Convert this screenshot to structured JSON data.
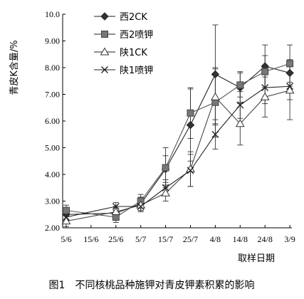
{
  "chart_data": {
    "type": "line",
    "caption": "图1　不同核桃品种施钾对青皮钾素积累的影响",
    "xlabel": "取样日期",
    "ylabel": "青皮K含量/%",
    "ylim": [
      2.0,
      10.0
    ],
    "yticks": [
      "2.00",
      "3.00",
      "4.00",
      "5.00",
      "6.00",
      "7.00",
      "8.00",
      "9.00",
      "10.0"
    ],
    "categories": [
      "5/6",
      "15/6",
      "25/6",
      "5/7",
      "15/7",
      "25/7",
      "4/8",
      "14/8",
      "24/8",
      "3/9"
    ],
    "legend_position": "top-left",
    "series": [
      {
        "name": "西2CK",
        "marker": "diamond",
        "x": [
          "5/6",
          "25/6",
          "5/7",
          "15/7",
          "25/7",
          "4/8",
          "14/8",
          "24/8",
          "3/9"
        ],
        "values": [
          2.5,
          2.55,
          2.9,
          4.2,
          5.85,
          7.75,
          7.25,
          8.05,
          7.8
        ],
        "errors": [
          0.2,
          0.2,
          0.25,
          0.5,
          1.35,
          1.85,
          0.6,
          0.8,
          0.5
        ]
      },
      {
        "name": "西2喷钾",
        "marker": "square",
        "x": [
          "5/6",
          "25/6",
          "5/7",
          "15/7",
          "25/7",
          "4/8",
          "14/8",
          "24/8",
          "3/9"
        ],
        "values": [
          2.65,
          2.4,
          3.0,
          4.25,
          6.3,
          6.7,
          7.35,
          7.85,
          8.15
        ],
        "errors": [
          0.2,
          0.2,
          0.25,
          0.75,
          0.95,
          1.3,
          0.45,
          0.6,
          0.7
        ]
      },
      {
        "name": "陕1CK",
        "marker": "triangle",
        "x": [
          "5/6",
          "25/6",
          "5/7",
          "15/7",
          "25/7",
          "4/8",
          "14/8",
          "24/8",
          "3/9"
        ],
        "values": [
          2.25,
          2.6,
          2.85,
          3.3,
          4.2,
          6.9,
          5.9,
          6.9,
          7.15
        ],
        "errors": [
          0.2,
          0.2,
          0.2,
          0.3,
          0.65,
          1.05,
          0.8,
          0.75,
          1.1
        ]
      },
      {
        "name": "陕1喷钾",
        "marker": "x",
        "x": [
          "5/6",
          "25/6",
          "5/7",
          "15/7",
          "25/7",
          "4/8",
          "14/8",
          "24/8",
          "3/9"
        ],
        "values": [
          2.4,
          2.8,
          2.8,
          3.5,
          4.15,
          5.5,
          6.6,
          7.25,
          7.3
        ],
        "errors": [
          0.15,
          0.15,
          0.2,
          0.3,
          0.6,
          0.55,
          0.5,
          0.6,
          0.5
        ]
      }
    ]
  }
}
